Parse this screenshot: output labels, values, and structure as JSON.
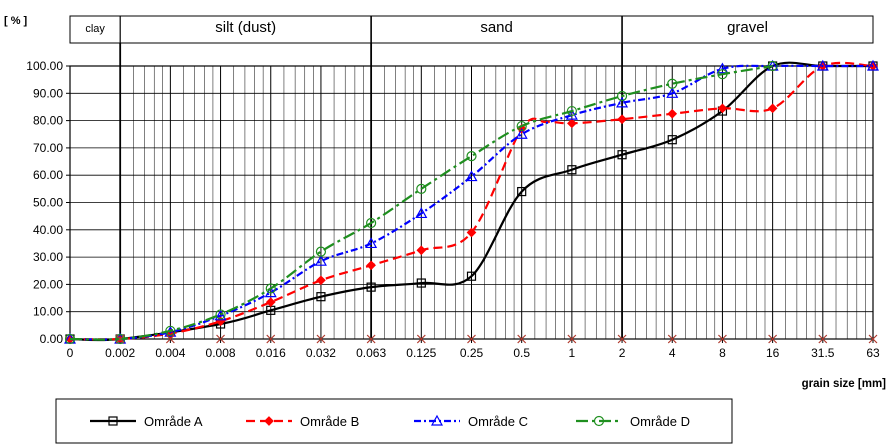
{
  "chart_data": {
    "type": "line",
    "y_unit_label": "[ % ]",
    "xlabel": "grain size [mm]",
    "ylabel": "",
    "ylim": [
      0,
      100
    ],
    "y_ticks": [
      "0.00",
      "10.00",
      "20.00",
      "30.00",
      "40.00",
      "50.00",
      "60.00",
      "70.00",
      "80.00",
      "90.00",
      "100.00"
    ],
    "categories": [
      "0",
      "0.002",
      "0.004",
      "0.008",
      "0.016",
      "0.032",
      "0.063",
      "0.125",
      "0.25",
      "0.5",
      "1",
      "2",
      "4",
      "8",
      "16",
      "31.5",
      "63"
    ],
    "regions": [
      {
        "label": "clay",
        "from": "0",
        "to": "0.002"
      },
      {
        "label": "silt (dust)",
        "from": "0.002",
        "to": "0.063"
      },
      {
        "label": "sand",
        "from": "0.063",
        "to": "2"
      },
      {
        "label": "gravel",
        "from": "2",
        "to": "63"
      }
    ],
    "grid": true,
    "legend_position": "bottom",
    "series": [
      {
        "name": "Område A",
        "color": "#000000",
        "dash": "solid",
        "marker": "square",
        "points": [
          [
            0,
            0
          ],
          [
            0.002,
            0
          ],
          [
            0.008,
            5.5
          ],
          [
            0.016,
            10.5
          ],
          [
            0.032,
            15.5
          ],
          [
            0.063,
            19
          ],
          [
            0.125,
            20.5
          ],
          [
            0.25,
            23
          ],
          [
            0.5,
            54
          ],
          [
            1,
            62
          ],
          [
            2,
            67.5
          ],
          [
            4,
            73
          ],
          [
            8,
            83.5
          ],
          [
            16,
            100
          ],
          [
            31.5,
            100
          ],
          [
            63,
            100
          ]
        ]
      },
      {
        "name": "Område B",
        "color": "#ff0000",
        "dash": "dash",
        "marker": "diamond",
        "points": [
          [
            0,
            0
          ],
          [
            0.002,
            0
          ],
          [
            0.004,
            2
          ],
          [
            0.008,
            6.5
          ],
          [
            0.016,
            13.5
          ],
          [
            0.032,
            21.5
          ],
          [
            0.063,
            27
          ],
          [
            0.125,
            32.5
          ],
          [
            0.25,
            39
          ],
          [
            0.5,
            77
          ],
          [
            0.7,
            79.5
          ],
          [
            1,
            79
          ],
          [
            2,
            80.5
          ],
          [
            4,
            82.5
          ],
          [
            8,
            84.5
          ],
          [
            16,
            84.5
          ],
          [
            31.5,
            100
          ],
          [
            63,
            100
          ]
        ]
      },
      {
        "name": "Område C",
        "color": "#0000ff",
        "dash": "dashdot",
        "marker": "triangle",
        "points": [
          [
            0,
            0
          ],
          [
            0.002,
            0
          ],
          [
            0.004,
            2.5
          ],
          [
            0.008,
            8.5
          ],
          [
            0.016,
            17
          ],
          [
            0.032,
            28.5
          ],
          [
            0.063,
            35
          ],
          [
            0.125,
            46
          ],
          [
            0.25,
            59.5
          ],
          [
            0.5,
            75
          ],
          [
            1,
            82
          ],
          [
            2,
            86.5
          ],
          [
            4,
            90
          ],
          [
            8,
            99
          ],
          [
            16,
            100
          ],
          [
            31.5,
            100
          ],
          [
            63,
            100
          ]
        ]
      },
      {
        "name": "Område D",
        "color": "#1f8f1f",
        "dash": "dashdot2",
        "marker": "circle",
        "points": [
          [
            0,
            0
          ],
          [
            0.002,
            0
          ],
          [
            0.004,
            3
          ],
          [
            0.008,
            9
          ],
          [
            0.016,
            18.5
          ],
          [
            0.032,
            32
          ],
          [
            0.063,
            42.5
          ],
          [
            0.125,
            55
          ],
          [
            0.25,
            67
          ],
          [
            0.5,
            78
          ],
          [
            1,
            83.5
          ],
          [
            2,
            89
          ],
          [
            4,
            93.5
          ],
          [
            8,
            97
          ],
          [
            16,
            100
          ]
        ]
      },
      {
        "name": "",
        "color": "#b03a2e",
        "dash": "none",
        "marker": "cross",
        "points": [
          [
            0.002,
            0
          ],
          [
            0.004,
            0
          ],
          [
            0.008,
            0
          ],
          [
            0.016,
            0
          ],
          [
            0.032,
            0
          ],
          [
            0.063,
            0
          ],
          [
            0.125,
            0
          ],
          [
            0.25,
            0
          ],
          [
            0.5,
            0
          ],
          [
            1,
            0
          ],
          [
            2,
            0
          ],
          [
            4,
            0
          ],
          [
            8,
            0
          ],
          [
            16,
            0
          ],
          [
            31.5,
            0
          ],
          [
            63,
            0
          ]
        ]
      }
    ]
  }
}
